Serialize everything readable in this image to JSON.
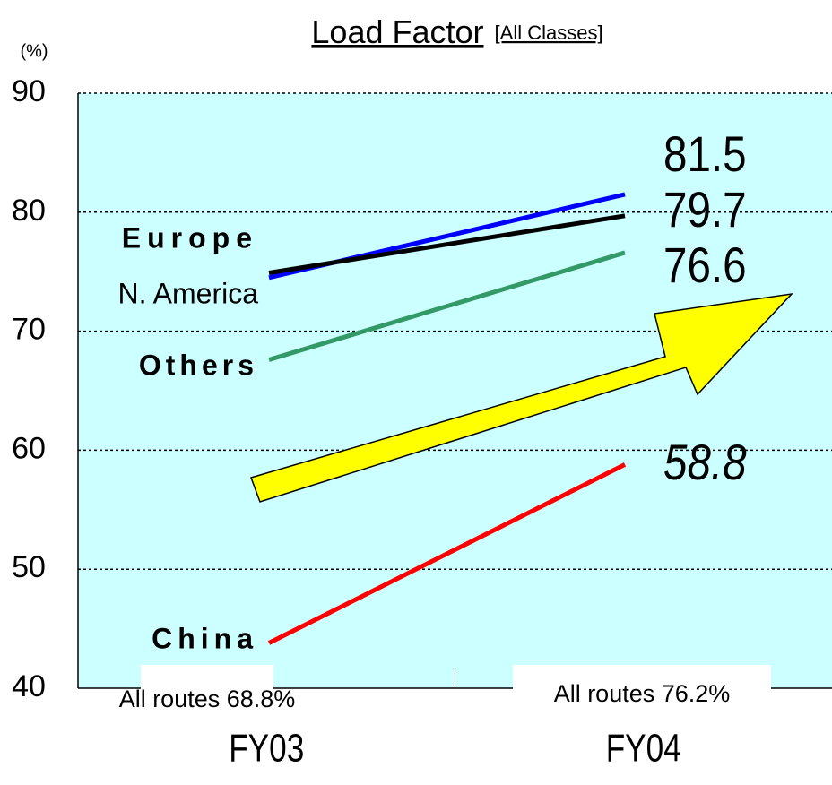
{
  "chart_data": {
    "type": "line",
    "title": "Load Factor",
    "subtitle": "[All Classes]",
    "y_label": "(%)",
    "categories": [
      "FY03",
      "FY04"
    ],
    "series": [
      {
        "name": "Europe",
        "color": "#0000ff",
        "values": [
          74.5,
          81.5
        ]
      },
      {
        "name": "N. America",
        "color": "#000000",
        "values": [
          74.9,
          79.7
        ]
      },
      {
        "name": "Others",
        "color": "#339966",
        "values": [
          67.6,
          76.6
        ]
      },
      {
        "name": "China",
        "color": "#ff0000",
        "values": [
          43.8,
          58.8
        ]
      }
    ],
    "annotations": [
      "All routes  68.8%",
      "All routes 76.2%"
    ],
    "ylim": [
      40,
      90
    ],
    "yticks": [
      40,
      50,
      60,
      70,
      80,
      90
    ],
    "grid": true,
    "background": "#ccffff"
  }
}
